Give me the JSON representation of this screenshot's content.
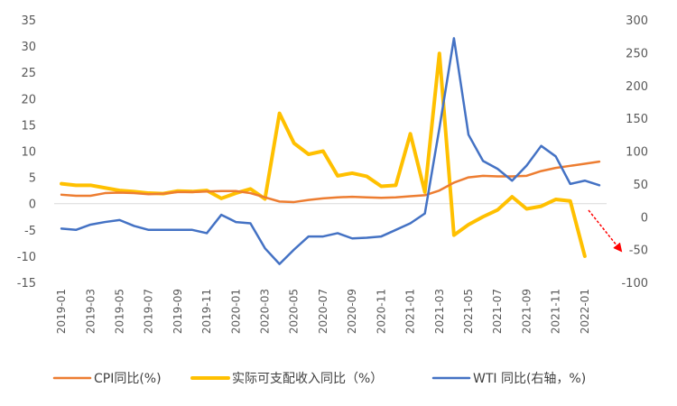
{
  "chart_data": {
    "type": "line",
    "x": [
      "2019-01",
      "2019-02",
      "2019-03",
      "2019-04",
      "2019-05",
      "2019-06",
      "2019-07",
      "2019-08",
      "2019-09",
      "2019-10",
      "2019-11",
      "2019-12",
      "2020-01",
      "2020-02",
      "2020-03",
      "2020-04",
      "2020-05",
      "2020-06",
      "2020-07",
      "2020-08",
      "2020-09",
      "2020-10",
      "2020-11",
      "2020-12",
      "2021-01",
      "2021-02",
      "2021-03",
      "2021-04",
      "2021-05",
      "2021-06",
      "2021-07",
      "2021-08",
      "2021-09",
      "2021-10",
      "2021-11",
      "2021-12",
      "2022-01",
      "2022-02"
    ],
    "x_tick_labels": [
      "2019-01",
      "2019-03",
      "2019-05",
      "2019-07",
      "2019-09",
      "2019-11",
      "2020-01",
      "2020-03",
      "2020-05",
      "2020-07",
      "2020-09",
      "2020-11",
      "2021-01",
      "2021-03",
      "2021-05",
      "2021-07",
      "2021-09",
      "2021-11",
      "2022-01"
    ],
    "left_axis": {
      "ylim": [
        -15,
        35
      ],
      "ticks": [
        "35",
        "30",
        "25",
        "20",
        "15",
        "10",
        "5",
        "0",
        "-5",
        "-10",
        "-15"
      ]
    },
    "right_axis": {
      "ylim": [
        -100,
        300
      ],
      "ticks": [
        "300",
        "250",
        "200",
        "150",
        "100",
        "50",
        "0",
        "-50",
        "-100"
      ]
    },
    "series": [
      {
        "name": "CPI同比(%)",
        "axis": "left",
        "color": "#ED7D31",
        "values": [
          1.7,
          1.5,
          1.5,
          2.0,
          2.1,
          2.0,
          1.8,
          1.9,
          2.2,
          2.2,
          2.3,
          2.4,
          2.4,
          2.0,
          1.2,
          0.4,
          0.3,
          0.7,
          1.0,
          1.2,
          1.3,
          1.2,
          1.1,
          1.2,
          1.4,
          1.6,
          2.5,
          4.0,
          5.0,
          5.3,
          5.2,
          5.2,
          5.3,
          6.2,
          6.8,
          7.2,
          7.6,
          8.0
        ]
      },
      {
        "name": "实际可支配收入同比（%）",
        "axis": "left",
        "color": "#FFC000",
        "values": [
          3.8,
          3.5,
          3.5,
          3.0,
          2.5,
          2.3,
          2.0,
          1.9,
          2.4,
          2.3,
          2.5,
          1.0,
          2.0,
          2.8,
          0.9,
          17.2,
          11.5,
          9.4,
          10.0,
          5.3,
          5.8,
          5.2,
          3.3,
          3.5,
          13.3,
          2.2,
          28.6,
          -6.0,
          -4.0,
          -2.5,
          -1.2,
          1.3,
          -1.0,
          -0.5,
          0.8,
          0.5,
          -10.0,
          null
        ]
      },
      {
        "name": "WTI 同比(右轴，%)",
        "axis": "right",
        "color": "#4472C4",
        "values": [
          -18,
          -20,
          -12,
          -8,
          -5,
          -14,
          -20,
          -20,
          -20,
          -20,
          -25,
          3,
          -8,
          -10,
          -48,
          -72,
          -50,
          -30,
          -30,
          -25,
          -33,
          -32,
          -30,
          -20,
          -10,
          5,
          135,
          272,
          125,
          85,
          73,
          55,
          78,
          108,
          92,
          50,
          55,
          48
        ]
      }
    ],
    "legend_position": "bottom",
    "grid": false
  }
}
